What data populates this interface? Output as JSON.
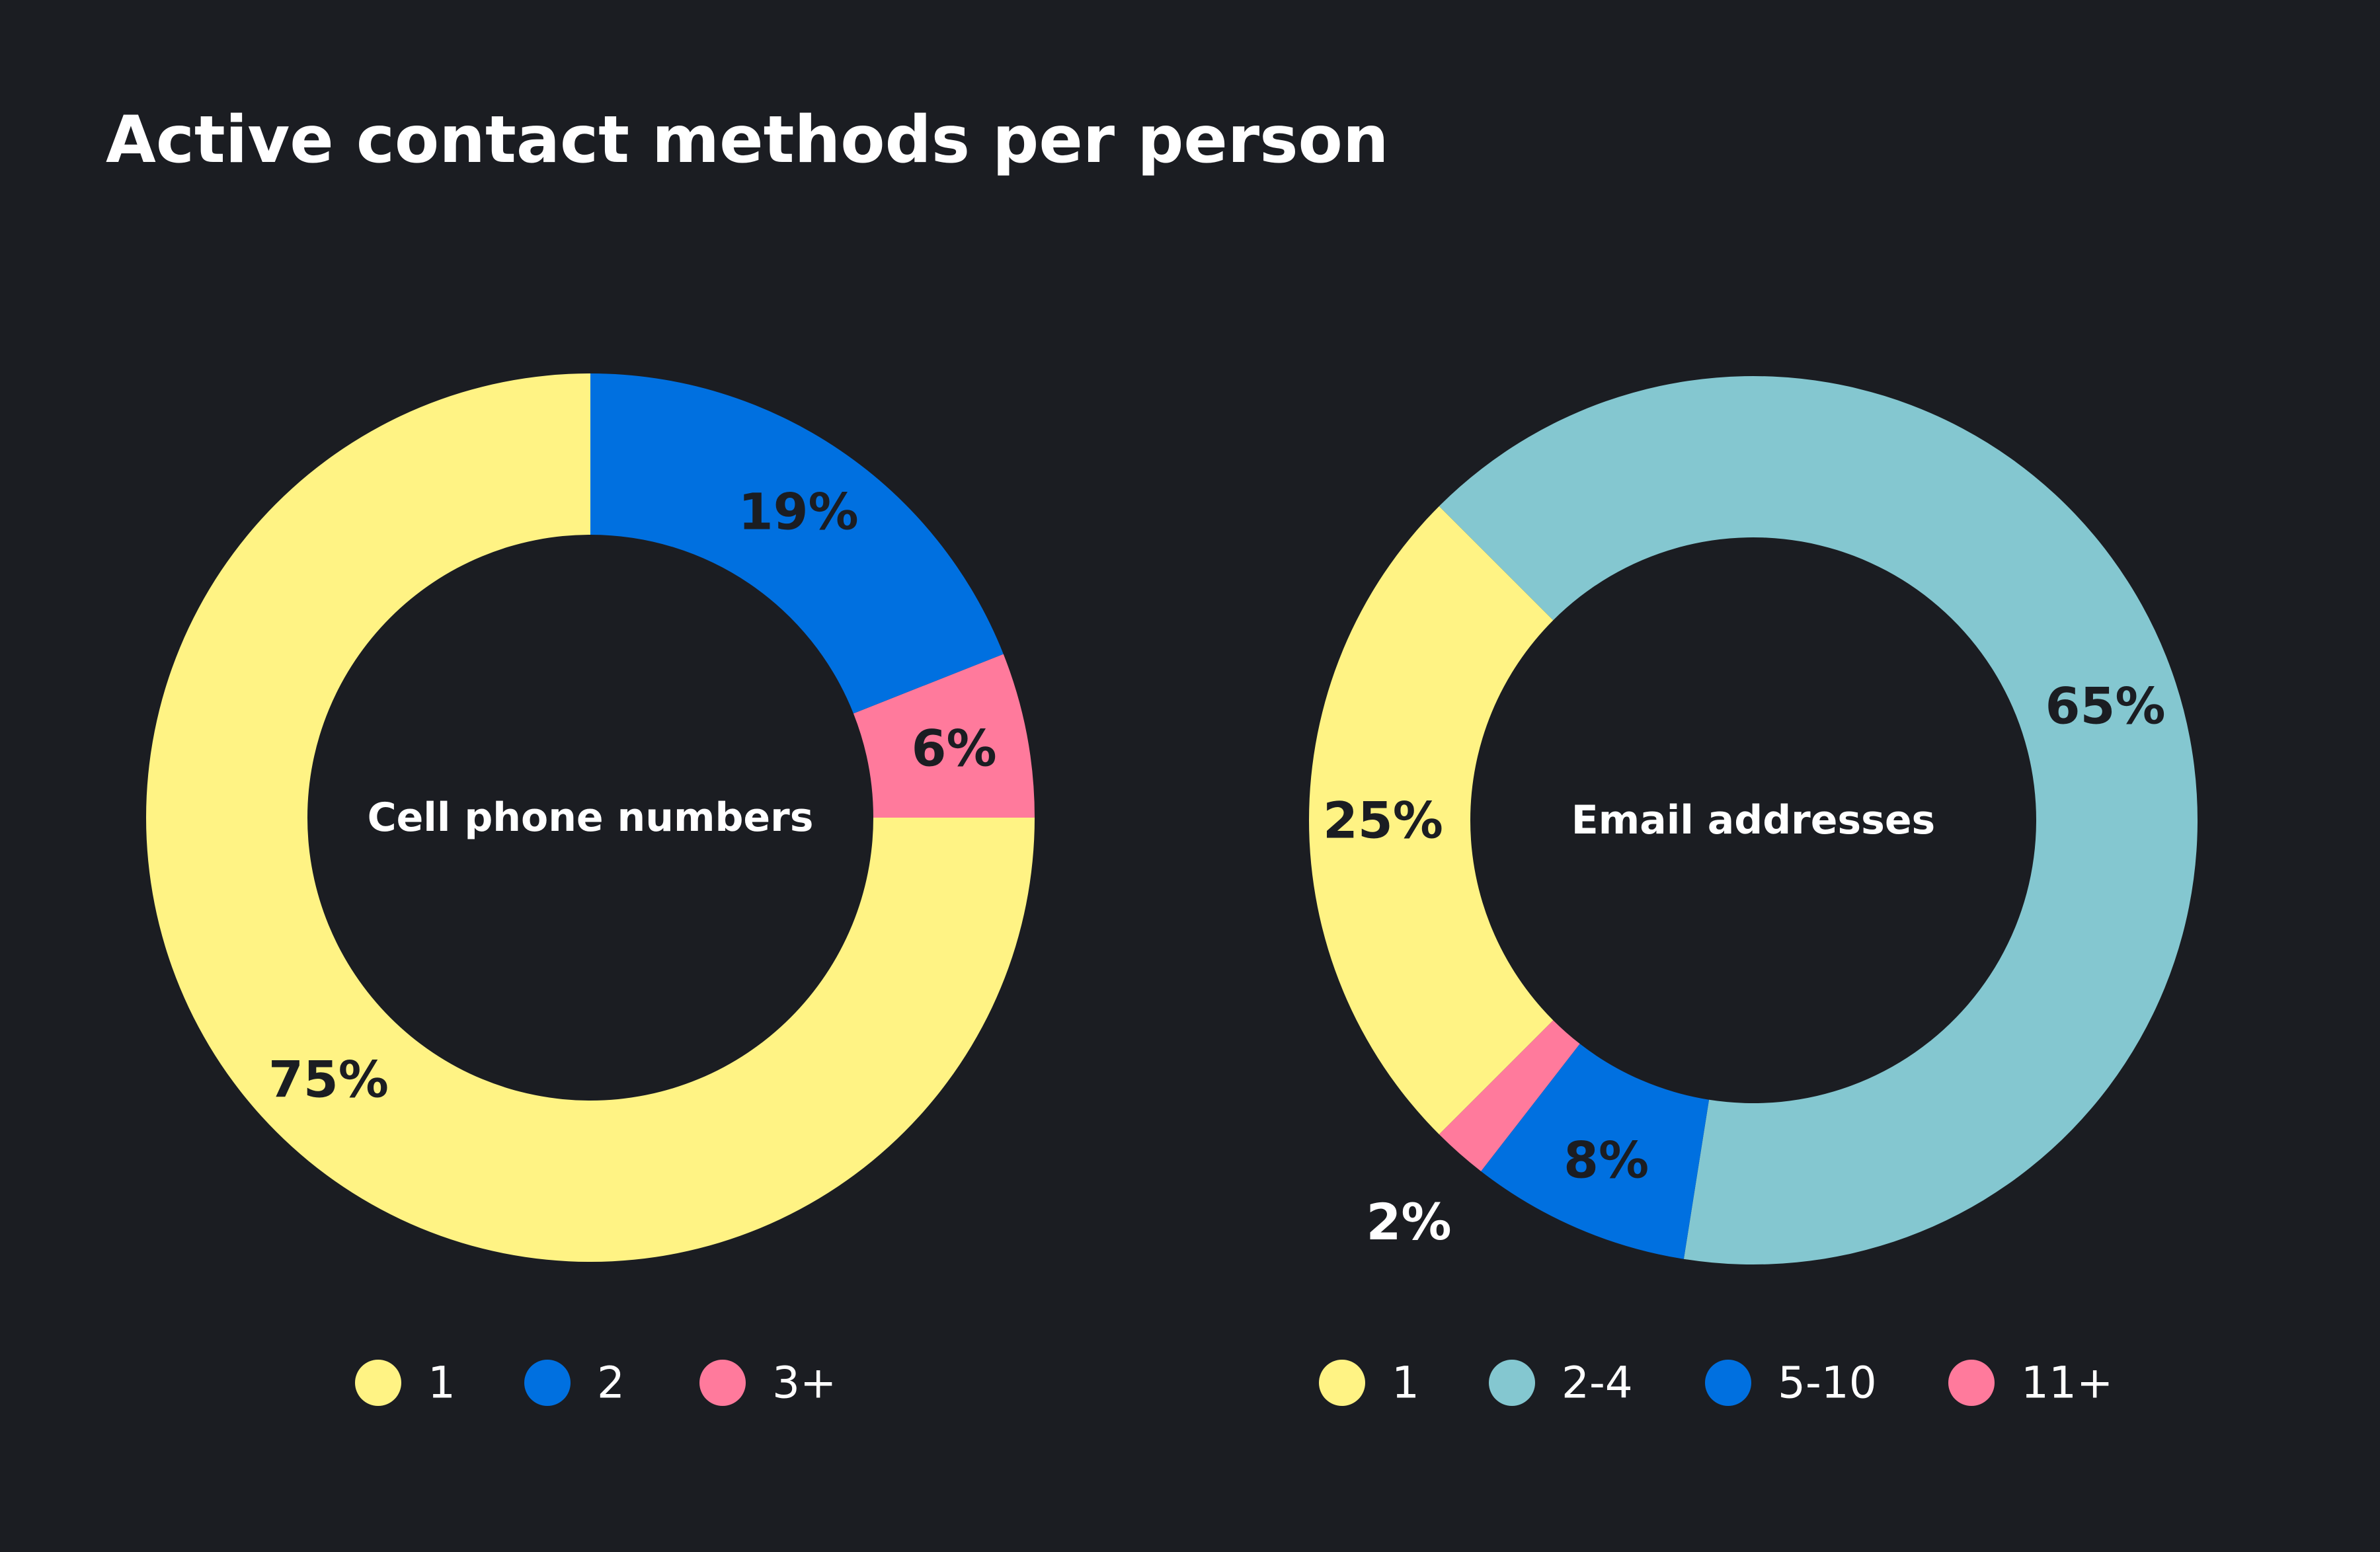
{
  "background": "#1b1d22",
  "title": "Active contact methods per person",
  "chart_data": [
    {
      "type": "pie",
      "variant": "donut",
      "center_label": "Cell phone numbers",
      "start_angle_deg": 0,
      "direction": "clockwise",
      "slices": [
        {
          "label": "2",
          "value": 19,
          "display": "19%",
          "color": "#0070e0",
          "label_color": "#1b1d22"
        },
        {
          "label": "3+",
          "value": 6,
          "display": "6%",
          "color": "#ff7a9c",
          "label_color": "#1b1d22"
        },
        {
          "label": "1",
          "value": 75,
          "display": "75%",
          "color": "#fff384",
          "label_color": "#1b1d22"
        }
      ],
      "legend": [
        {
          "label": "1",
          "color": "#fff384"
        },
        {
          "label": "2",
          "color": "#0070e0"
        },
        {
          "label": "3+",
          "color": "#ff7a9c"
        }
      ],
      "legend_position": "bottom"
    },
    {
      "type": "pie",
      "variant": "donut",
      "center_label": "Email addresses",
      "start_angle_deg": -45,
      "direction": "clockwise",
      "slices": [
        {
          "label": "2-4",
          "value": 65,
          "display": "65%",
          "color": "#84c7d0",
          "label_color": "#1b1d22"
        },
        {
          "label": "5-10",
          "value": 8,
          "display": "8%",
          "color": "#0070e0",
          "label_color": "#1b1d22"
        },
        {
          "label": "11+",
          "value": 2,
          "display": "2%",
          "color": "#ff7a9c",
          "label_color": "#ffffff",
          "label_outside": true
        },
        {
          "label": "1",
          "value": 25,
          "display": "25%",
          "color": "#fff384",
          "label_color": "#1b1d22"
        }
      ],
      "legend": [
        {
          "label": "1",
          "color": "#fff384"
        },
        {
          "label": "2-4",
          "color": "#84c7d0"
        },
        {
          "label": "5-10",
          "color": "#0070e0"
        },
        {
          "label": "11+",
          "color": "#ff7a9c"
        }
      ],
      "legend_position": "bottom"
    }
  ]
}
